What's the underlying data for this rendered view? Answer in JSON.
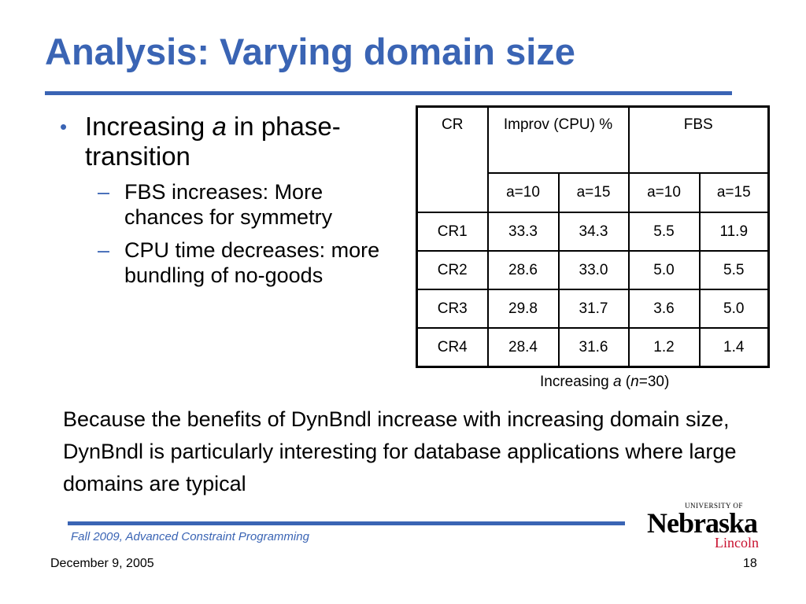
{
  "title": "Analysis: Varying domain size",
  "bullets": {
    "main": {
      "pre": "Increasing ",
      "var": "a",
      "post": " in phase-transition"
    },
    "subs": [
      "FBS increases: More chances for symmetry",
      "CPU time decreases: more bundling of no-goods"
    ]
  },
  "table": {
    "head": {
      "cr": "CR",
      "improv": "Improv (CPU) %",
      "fbs": "FBS"
    },
    "subhead": [
      "a=10",
      "a=15",
      "a=10",
      "a=15"
    ],
    "rows": [
      [
        "CR1",
        "33.3",
        "34.3",
        "5.5",
        "11.9"
      ],
      [
        "CR2",
        "28.6",
        "33.0",
        "5.0",
        "5.5"
      ],
      [
        "CR3",
        "29.8",
        "31.7",
        "3.6",
        "5.0"
      ],
      [
        "CR4",
        "28.4",
        "31.6",
        "1.2",
        "1.4"
      ]
    ],
    "caption": {
      "pre": "Increasing ",
      "a": "a",
      "mid": " (",
      "n": "n",
      "post": "=30)"
    }
  },
  "paragraph": "Because the benefits of DynBndl increase with increasing domain size, DynBndl is particularly interesting for database applications where large domains are typical",
  "footer": {
    "course": "Fall 2009, Advanced Constraint Programming",
    "date": "December 9, 2005",
    "page": "18"
  },
  "logo": {
    "top": "UNIVERSITY OF",
    "main": "Nebraska",
    "sub": "Lincoln"
  },
  "colors": {
    "accent": "#3a64b4",
    "logo_red": "#c8102e"
  }
}
